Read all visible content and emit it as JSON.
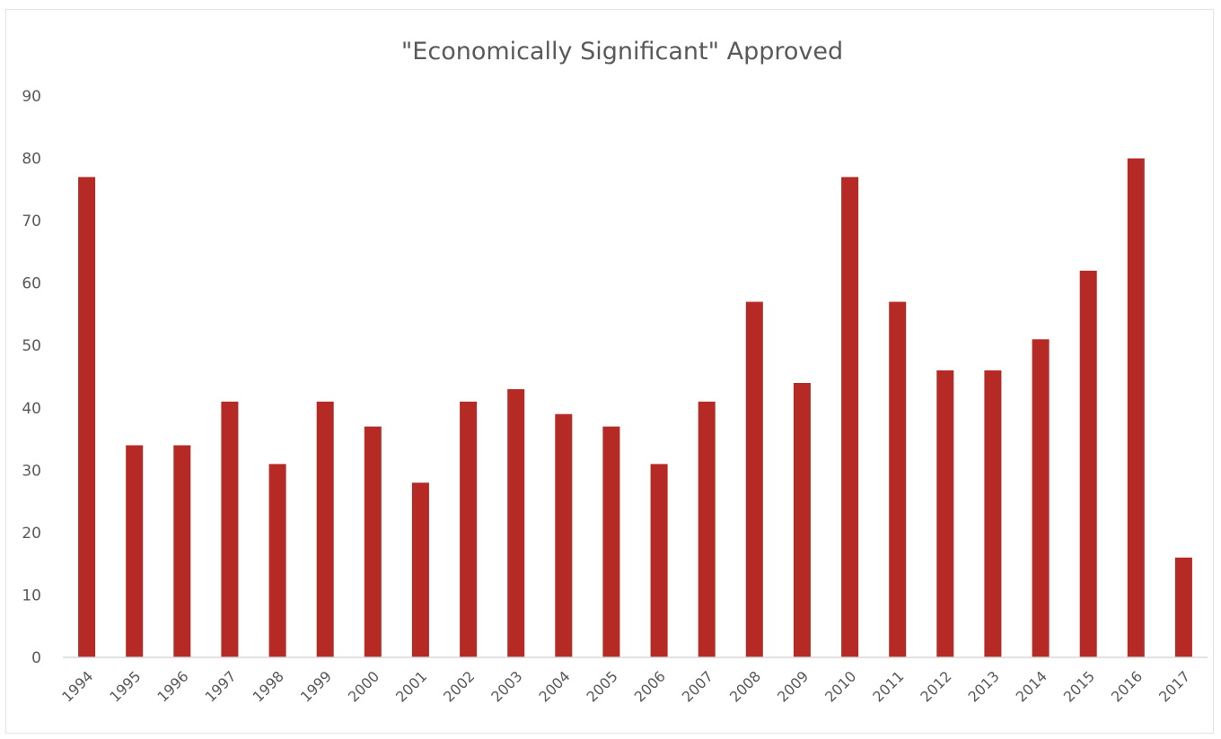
{
  "chart_data": {
    "type": "bar",
    "title": "\"Economically Significant\" Approved",
    "xlabel": "",
    "ylabel": "",
    "categories": [
      "1994",
      "1995",
      "1996",
      "1997",
      "1998",
      "1999",
      "2000",
      "2001",
      "2002",
      "2003",
      "2004",
      "2005",
      "2006",
      "2007",
      "2008",
      "2009",
      "2010",
      "2011",
      "2012",
      "2013",
      "2014",
      "2015",
      "2016",
      "2017"
    ],
    "values": [
      77,
      34,
      34,
      41,
      31,
      41,
      37,
      28,
      41,
      43,
      39,
      37,
      31,
      41,
      57,
      44,
      77,
      57,
      46,
      46,
      51,
      62,
      80,
      16
    ],
    "ylim": [
      0,
      90
    ],
    "yticks": [
      "0",
      "10",
      "20",
      "30",
      "40",
      "50",
      "60",
      "70",
      "80",
      "90"
    ],
    "grid": false,
    "legend": "none",
    "bar_color": "#b52a24",
    "axis_color": "#d9d9d9"
  }
}
